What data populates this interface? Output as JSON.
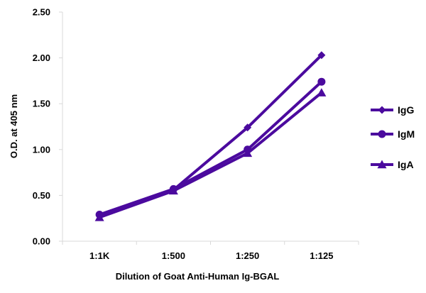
{
  "chart_data": {
    "type": "line",
    "title": "",
    "xlabel": "Dilution of Goat Anti-Human Ig-BGAL",
    "ylabel": "O.D. at 405 nm",
    "categories": [
      "1:1K",
      "1:500",
      "1:250",
      "1:125"
    ],
    "ylim": [
      0,
      2.5
    ],
    "yticks": [
      "0.00",
      "0.50",
      "1.00",
      "1.50",
      "2.00",
      "2.50"
    ],
    "grid": false,
    "legend_position": "right",
    "line_color": "#4B0A9E",
    "series": [
      {
        "name": "IgG",
        "marker": "diamond",
        "values": [
          0.28,
          0.56,
          1.24,
          2.03
        ]
      },
      {
        "name": "IgM",
        "marker": "circle",
        "values": [
          0.29,
          0.57,
          1.0,
          1.74
        ]
      },
      {
        "name": "IgA",
        "marker": "triangle",
        "values": [
          0.26,
          0.55,
          0.96,
          1.62
        ]
      }
    ]
  }
}
